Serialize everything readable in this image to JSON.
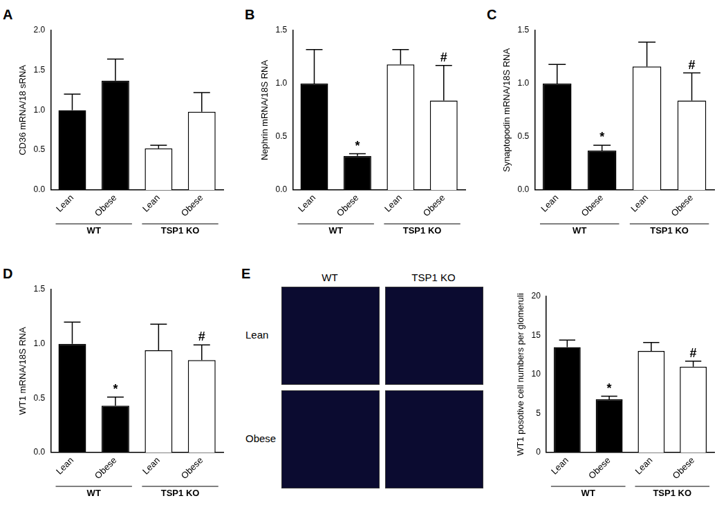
{
  "chart_data": [
    {
      "type": "bar",
      "panel": "A",
      "y_label": "CD36 mRNA/18 sRNA",
      "categories": [
        "Lean",
        "Obese",
        "Lean",
        "Obese"
      ],
      "group": [
        "WT",
        "WT",
        "TSP1 KO",
        "TSP1 KO"
      ],
      "colors": [
        "#000000",
        "#000000",
        "#ffffff",
        "#ffffff"
      ],
      "values": [
        1.0,
        1.37,
        0.52,
        0.98
      ],
      "errors": [
        0.2,
        0.27,
        0.04,
        0.24
      ],
      "annotations": [
        null,
        null,
        null,
        null
      ],
      "ylim": [
        0,
        2
      ],
      "yticks": [
        {
          "value": 0,
          "label": "0.0"
        },
        {
          "value": 0.5,
          "label": "0.5"
        },
        {
          "value": 1,
          "label": "1.0"
        },
        {
          "value": 1.5,
          "label": "1.5"
        },
        {
          "value": 2,
          "label": "2.0"
        }
      ],
      "grid": false
    },
    {
      "type": "bar",
      "panel": "B",
      "y_label": "Nephrin mRNA/18S RNA",
      "categories": [
        "Lean",
        "Obese",
        "Lean",
        "Obese"
      ],
      "group": [
        "WT",
        "WT",
        "TSP1 KO",
        "TSP1 KO"
      ],
      "colors": [
        "#000000",
        "#000000",
        "#ffffff",
        "#ffffff"
      ],
      "values": [
        1.0,
        0.32,
        1.18,
        0.84
      ],
      "errors": [
        0.32,
        0.02,
        0.14,
        0.33
      ],
      "annotations": [
        null,
        "*",
        null,
        "#"
      ],
      "ylim": [
        0,
        1.5
      ],
      "yticks": [
        {
          "value": 0,
          "label": "0.0"
        },
        {
          "value": 0.5,
          "label": "0.5"
        },
        {
          "value": 1,
          "label": "1.0"
        },
        {
          "value": 1.5,
          "label": "1.5"
        }
      ],
      "grid": false
    },
    {
      "type": "bar",
      "panel": "C",
      "y_label": "Synaptopodin mRNA/18S RNA",
      "categories": [
        "Lean",
        "Obese",
        "Lean",
        "Obese"
      ],
      "group": [
        "WT",
        "WT",
        "TSP1 KO",
        "TSP1 KO"
      ],
      "colors": [
        "#000000",
        "#000000",
        "#ffffff",
        "#ffffff"
      ],
      "values": [
        1.0,
        0.37,
        1.16,
        0.84
      ],
      "errors": [
        0.18,
        0.05,
        0.23,
        0.26
      ],
      "annotations": [
        null,
        "*",
        null,
        "#"
      ],
      "ylim": [
        0,
        1.5
      ],
      "yticks": [
        {
          "value": 0,
          "label": "0.0"
        },
        {
          "value": 0.5,
          "label": "0.5"
        },
        {
          "value": 1,
          "label": "1.0"
        },
        {
          "value": 1.5,
          "label": "1.5"
        }
      ],
      "grid": false
    },
    {
      "type": "bar",
      "panel": "D",
      "y_label": "WT1 mRNA/18S RNA",
      "categories": [
        "Lean",
        "Obese",
        "Lean",
        "Obese"
      ],
      "group": [
        "WT",
        "WT",
        "TSP1 KO",
        "TSP1 KO"
      ],
      "colors": [
        "#000000",
        "#000000",
        "#ffffff",
        "#ffffff"
      ],
      "values": [
        1.0,
        0.43,
        0.94,
        0.85
      ],
      "errors": [
        0.2,
        0.08,
        0.24,
        0.14
      ],
      "annotations": [
        null,
        "*",
        null,
        "#"
      ],
      "ylim": [
        0,
        1.5
      ],
      "yticks": [
        {
          "value": 0,
          "label": "0.0"
        },
        {
          "value": 0.5,
          "label": "0.5"
        },
        {
          "value": 1,
          "label": "1.0"
        },
        {
          "value": 1.5,
          "label": "1.5"
        }
      ],
      "grid": false
    },
    {
      "type": "bar",
      "y_label": "WT1 posotive cell numbers per glomeruli",
      "categories": [
        "Lean",
        "Obese",
        "Lean",
        "Obese"
      ],
      "group": [
        "WT",
        "WT",
        "TSP1 KO",
        "TSP1 KO"
      ],
      "colors": [
        "#000000",
        "#000000",
        "#ffffff",
        "#ffffff"
      ],
      "values": [
        13.5,
        6.8,
        13.0,
        11.0
      ],
      "errors": [
        0.9,
        0.4,
        1.1,
        0.7
      ],
      "annotations": [
        null,
        "*",
        null,
        "#"
      ],
      "ylim": [
        0,
        20
      ],
      "yticks": [
        0,
        5,
        10,
        15,
        20
      ],
      "grid": false
    }
  ],
  "image_panel": {
    "panel": "E",
    "columns": [
      "WT",
      "TSP1 KO"
    ],
    "rows": [
      "Lean",
      "Obese"
    ]
  }
}
